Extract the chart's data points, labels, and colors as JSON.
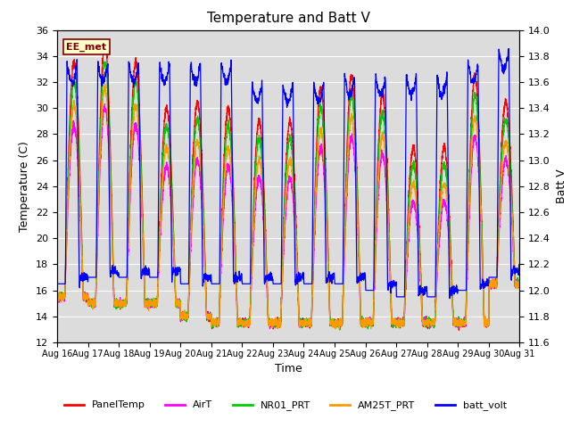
{
  "title": "Temperature and Batt V",
  "xlabel": "Time",
  "ylabel_left": "Temperature (C)",
  "ylabel_right": "Batt V",
  "ylim_left": [
    12,
    36
  ],
  "ylim_right": [
    11.6,
    14.0
  ],
  "yticks_left": [
    12,
    14,
    16,
    18,
    20,
    22,
    24,
    26,
    28,
    30,
    32,
    34,
    36
  ],
  "yticks_right": [
    11.6,
    11.8,
    12.0,
    12.2,
    12.4,
    12.6,
    12.8,
    13.0,
    13.2,
    13.4,
    13.6,
    13.8,
    14.0
  ],
  "xlim": [
    0,
    15
  ],
  "xtick_labels": [
    "Aug 16",
    "Aug 17",
    "Aug 18",
    "Aug 19",
    "Aug 20",
    "Aug 21",
    "Aug 22",
    "Aug 23",
    "Aug 24",
    "Aug 25",
    "Aug 26",
    "Aug 27",
    "Aug 28",
    "Aug 29",
    "Aug 30",
    "Aug 31"
  ],
  "annotation_text": "EE_met",
  "colors": {
    "PanelTemp": "#ff0000",
    "AirT": "#ff00ff",
    "NR01_PRT": "#00cc00",
    "AM25T_PRT": "#ff9900",
    "batt_volt": "#0000ff"
  },
  "legend_labels": [
    "PanelTemp",
    "AirT",
    "NR01_PRT",
    "AM25T_PRT",
    "batt_volt"
  ],
  "inner_background_color": "#dcdcdc",
  "title_fontsize": 11,
  "axis_fontsize": 9,
  "tick_fontsize": 8
}
